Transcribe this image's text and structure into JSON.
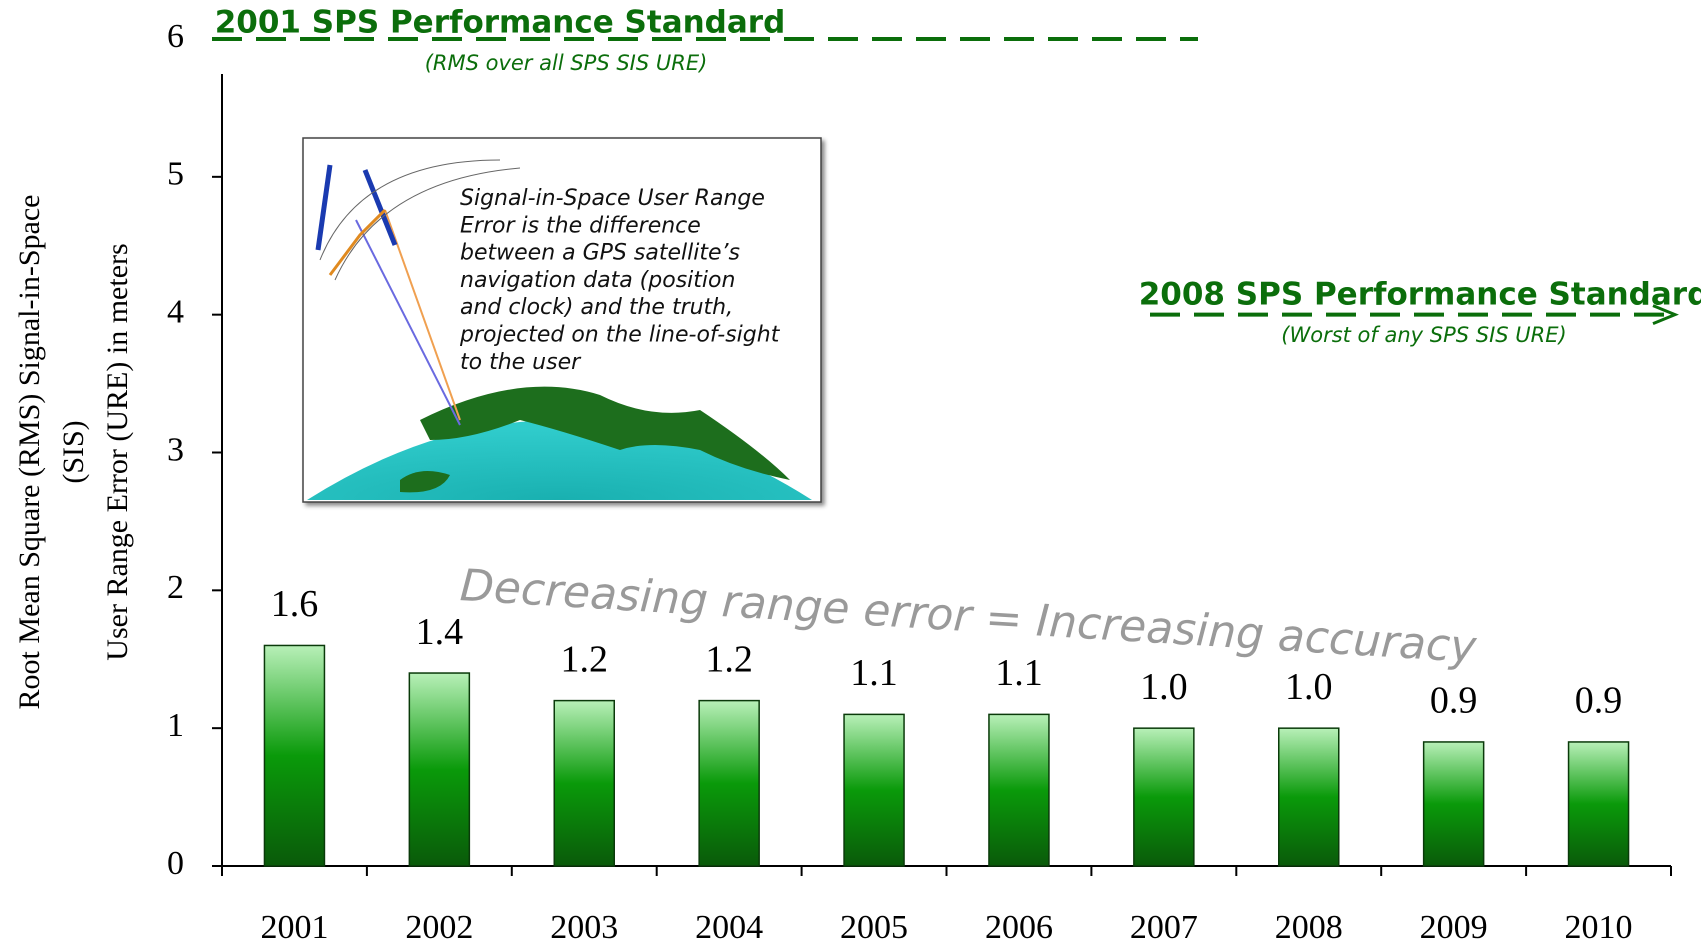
{
  "chart_data": {
    "type": "bar",
    "y_label": [
      "Root Mean Square (RMS) Signal-in-Space",
      "(SIS)",
      "User Range Error (URE) in meters"
    ],
    "categories": [
      "2001",
      "2002",
      "2003",
      "2004",
      "2005",
      "2006",
      "2007",
      "2008",
      "2009",
      "2010"
    ],
    "values": [
      1.6,
      1.4,
      1.2,
      1.2,
      1.1,
      1.1,
      1.0,
      1.0,
      0.9,
      0.9
    ],
    "value_labels": [
      "1.6",
      "1.4",
      "1.2",
      "1.2",
      "1.1",
      "1.1",
      "1.0",
      "1.0",
      "0.9",
      "0.9"
    ],
    "color": "#0a8a0a",
    "ylim": [
      0,
      6
    ],
    "yticks": [
      0,
      1,
      2,
      3,
      4,
      5,
      6
    ],
    "reference_lines": [
      {
        "value": 6,
        "label": "2001 SPS Performance Standard",
        "sublabel": "(RMS over all SPS SIS URE)",
        "color": "#0b6e0b"
      },
      {
        "value": 4,
        "label": "2008 SPS Performance Standard",
        "sublabel": "(Worst of any SPS SIS URE)",
        "color": "#0b6e0b"
      }
    ],
    "annotation": "Decreasing range error = Increasing accuracy",
    "inset_text": [
      "Signal-in-Space User Range",
      "Error is the difference",
      "between a GPS satellite’s",
      "navigation data (position",
      "and clock) and the truth,",
      "projected on the line-of-sight",
      "to the user"
    ]
  }
}
